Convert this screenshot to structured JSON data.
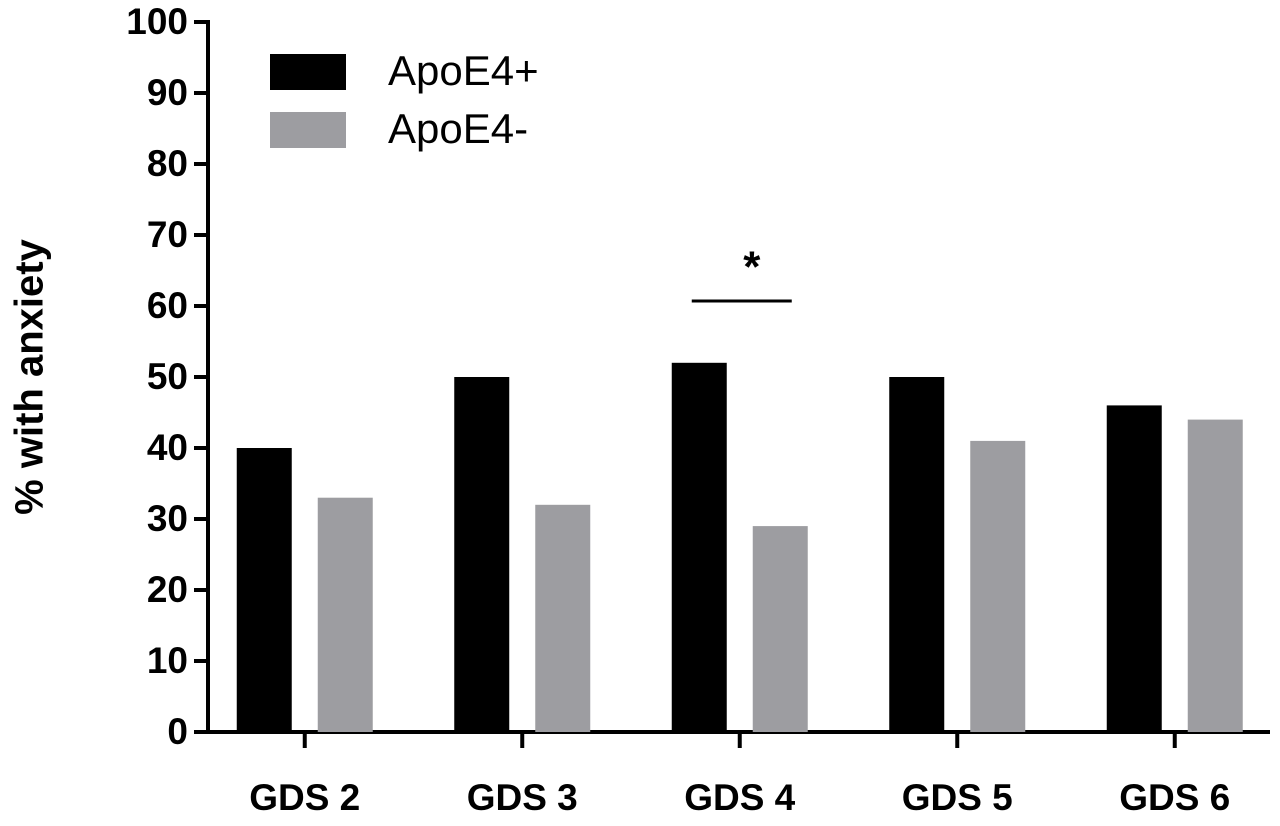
{
  "chart_data": {
    "type": "bar",
    "y_label": "% with anxiety",
    "categories": [
      "GDS 2",
      "GDS 3",
      "GDS 4",
      "GDS 5",
      "GDS 6"
    ],
    "series": [
      {
        "name": "ApoE4+",
        "color": "#000000",
        "values": [
          40,
          50,
          52,
          50,
          46
        ]
      },
      {
        "name": "ApoE4-",
        "color": "#9d9da1",
        "values": [
          33,
          32,
          29,
          41,
          44
        ]
      }
    ],
    "ylim": [
      0,
      100
    ],
    "yticks": [
      0,
      10,
      20,
      30,
      40,
      50,
      60,
      70,
      80,
      90,
      100
    ],
    "legend": "top-left",
    "annotations": [
      {
        "text": "*",
        "category": "GDS 4"
      }
    ]
  }
}
